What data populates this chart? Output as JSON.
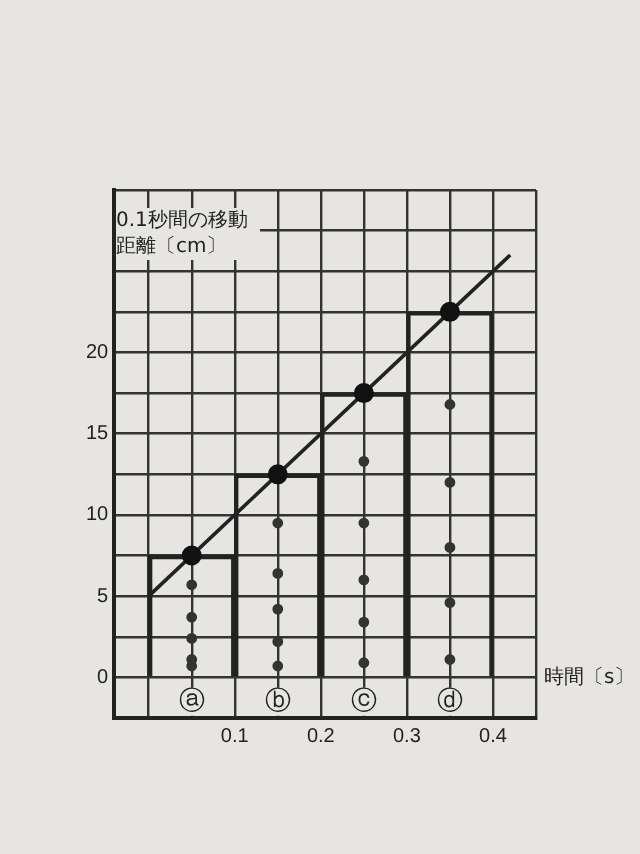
{
  "chart_data": {
    "type": "bar",
    "xlabel": "時間〔s〕",
    "ylabel": "0.1秒間の移動距離〔cm〕",
    "series": [
      {
        "color": "#222222",
        "x": [
          0.05,
          0.15,
          0.25,
          0.35
        ],
        "values": [
          7.5,
          12.5,
          17.5,
          22.5
        ]
      },
      {
        "type": "line",
        "color": "#222222",
        "x": [
          0,
          0.42
        ],
        "values": [
          5,
          26
        ],
        "marker": "none"
      },
      {
        "type": "scatter",
        "color": "#111111",
        "x": [
          0.05,
          0.15,
          0.25,
          0.35
        ],
        "values": [
          7.5,
          12.5,
          17.5,
          22.5
        ],
        "marker": "circle"
      },
      {
        "type": "scatter",
        "color": "#333333",
        "x": [
          0.05,
          0.05,
          0.05,
          0.05,
          0.05,
          0.15,
          0.15,
          0.15,
          0.15,
          0.15,
          0.25,
          0.25,
          0.25,
          0.25,
          0.25,
          0.35,
          0.35,
          0.35,
          0.35,
          0.35
        ],
        "values": [
          0.7,
          1.1,
          2.4,
          3.7,
          5.7,
          0.7,
          2.2,
          4.2,
          6.4,
          9.5,
          0.9,
          3.4,
          6,
          9.5,
          13.3,
          1.1,
          4.6,
          8,
          12,
          16.8
        ],
        "marker": "circle"
      }
    ],
    "xlim": [
      -0.04,
      0.45
    ],
    "xticks": [
      {
        "value": 0,
        "label": null
      },
      {
        "value": 0.05,
        "label": null
      },
      0.1,
      {
        "value": 0.15,
        "label": null
      },
      0.2,
      {
        "value": 0.25,
        "label": null
      },
      0.3,
      {
        "value": 0.35,
        "label": null
      },
      0.4,
      {
        "value": 0.45,
        "label": null
      }
    ],
    "ylim": [
      -2.5,
      30
    ],
    "yticks": [
      0,
      {
        "value": 2.5,
        "label": null
      },
      5,
      {
        "value": 7.5,
        "label": null
      },
      10,
      {
        "value": 12.5,
        "label": null
      },
      15,
      {
        "value": 17.5,
        "label": null
      },
      20,
      {
        "value": 22.5,
        "label": null
      },
      {
        "value": 25,
        "label": null
      },
      {
        "value": 27.5,
        "label": null
      },
      {
        "value": 30,
        "label": null
      }
    ],
    "grid": true,
    "legend": false,
    "annotations": [
      {
        "text": "ⓐ",
        "x": 0.05,
        "y": -1.5
      },
      {
        "text": "ⓑ",
        "x": 0.15,
        "y": -1.5
      },
      {
        "text": "ⓒ",
        "x": 0.25,
        "y": -1.5
      },
      {
        "text": "ⓓ",
        "x": 0.35,
        "y": -1.5
      }
    ]
  }
}
